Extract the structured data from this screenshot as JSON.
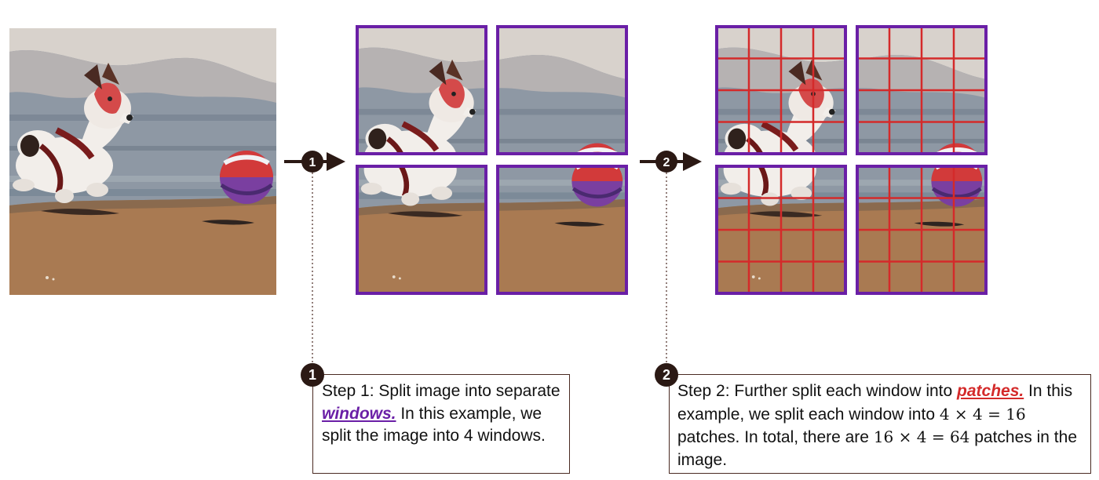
{
  "steps": [
    {
      "badge": "1",
      "lead": "Step 1: Split image into separate ",
      "keyword": "windows.",
      "tail": " In this example, we split the image into 4 windows."
    },
    {
      "badge": "2",
      "lead": "Step 2: Further split each window into ",
      "keyword": "patches.",
      "mid1": " In this example, we split each window into ",
      "math1": "4 × 4 = 16",
      "mid2": " patches. In total, there are ",
      "math2": "16 × 4 = 64",
      "tail": " patches in the image."
    }
  ],
  "colors": {
    "window_border": "#6a1fa6",
    "patch_grid": "#d42a2a",
    "arrow": "#2b1914",
    "sky": "#8f9aa6",
    "sand": "#a87a52"
  },
  "image_content": [
    "dog-photo",
    "beach-ball"
  ]
}
